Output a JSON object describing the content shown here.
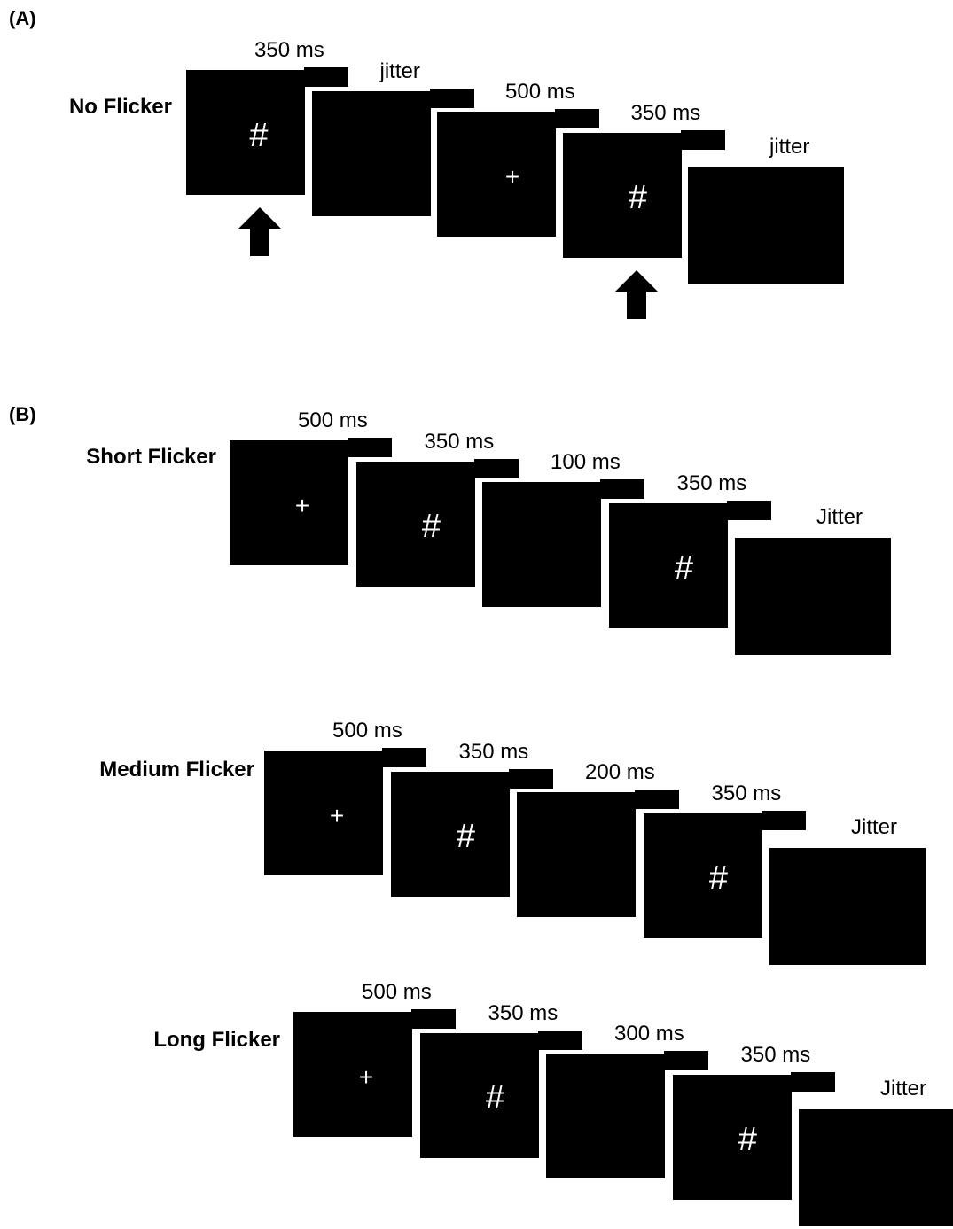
{
  "panels": [
    {
      "label": "(A)",
      "rows": [
        {
          "label": "No Flicker",
          "frames": [
            {
              "duration": "350 ms",
              "symbol": "#"
            },
            {
              "duration": "jitter",
              "symbol": ""
            },
            {
              "duration": "500 ms",
              "symbol": "+"
            },
            {
              "duration": "350 ms",
              "symbol": "#"
            },
            {
              "duration": "jitter",
              "symbol": ""
            }
          ],
          "arrows": [
            {
              "name": "up-arrow-icon",
              "under_frame": 0
            },
            {
              "name": "up-arrow-icon",
              "under_frame": 3
            }
          ]
        }
      ]
    },
    {
      "label": "(B)",
      "rows": [
        {
          "label": "Short Flicker",
          "frames": [
            {
              "duration": "500 ms",
              "symbol": "+"
            },
            {
              "duration": "350 ms",
              "symbol": "#"
            },
            {
              "duration": "100 ms",
              "symbol": ""
            },
            {
              "duration": "350 ms",
              "symbol": "#"
            },
            {
              "duration": "Jitter",
              "symbol": ""
            }
          ]
        },
        {
          "label": "Medium Flicker",
          "frames": [
            {
              "duration": "500 ms",
              "symbol": "+"
            },
            {
              "duration": "350 ms",
              "symbol": "#"
            },
            {
              "duration": "200 ms",
              "symbol": ""
            },
            {
              "duration": "350 ms",
              "symbol": "#"
            },
            {
              "duration": "Jitter",
              "symbol": ""
            }
          ]
        },
        {
          "label": "Long Flicker",
          "frames": [
            {
              "duration": "500 ms",
              "symbol": "+"
            },
            {
              "duration": "350 ms",
              "symbol": "#"
            },
            {
              "duration": "300 ms",
              "symbol": ""
            },
            {
              "duration": "350 ms",
              "symbol": "#"
            },
            {
              "duration": "Jitter",
              "symbol": ""
            }
          ]
        }
      ]
    }
  ]
}
